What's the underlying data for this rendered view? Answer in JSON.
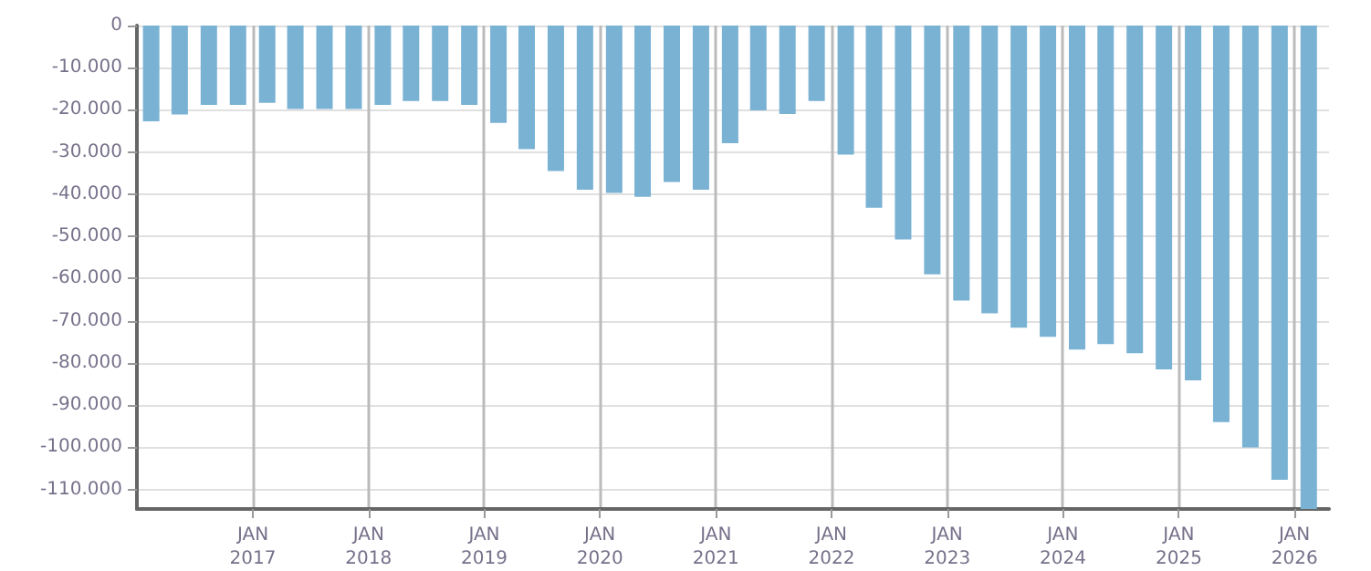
{
  "chart_data": {
    "type": "bar",
    "color": "#7ab2d4",
    "x": [
      "2016-02-15",
      "2016-05-15",
      "2016-08-15",
      "2016-11-15",
      "2017-02-15",
      "2017-05-15",
      "2017-08-15",
      "2017-11-15",
      "2018-02-15",
      "2018-05-15",
      "2018-08-15",
      "2018-11-15",
      "2019-02-15",
      "2019-05-15",
      "2019-08-15",
      "2019-11-15",
      "2020-02-15",
      "2020-05-15",
      "2020-08-15",
      "2020-11-15",
      "2021-02-15",
      "2021-05-15",
      "2021-08-15",
      "2021-11-15",
      "2022-02-15",
      "2022-05-15",
      "2022-08-15",
      "2022-11-15",
      "2023-02-15",
      "2023-05-15",
      "2023-08-15",
      "2023-11-15",
      "2024-02-15",
      "2024-05-15",
      "2024-08-15",
      "2024-11-15",
      "2025-02-15",
      "2025-05-15",
      "2025-08-15",
      "2025-11-15",
      "2026-02-15"
    ],
    "values": [
      -22700,
      -21100,
      -18800,
      -18800,
      -18300,
      -19800,
      -19800,
      -19800,
      -18800,
      -17900,
      -17900,
      -18800,
      -23100,
      -29300,
      -34500,
      -38900,
      -39700,
      -40600,
      -37100,
      -38900,
      -27900,
      -20100,
      -21000,
      -17900,
      -30600,
      -43200,
      -50700,
      -59000,
      -65200,
      -68200,
      -71600,
      -73800,
      -76800,
      -75500,
      -77700,
      -81500,
      -84100,
      -94000,
      -100000,
      -107700,
      -114600
    ],
    "xlim": [
      "2016-01-01",
      "2026-04-20"
    ],
    "xticks": [
      {
        "value": "2017-01-01",
        "label": "JAN\n2017"
      },
      {
        "value": "2018-01-01",
        "label": "JAN\n2018"
      },
      {
        "value": "2019-01-01",
        "label": "JAN\n2019"
      },
      {
        "value": "2020-01-01",
        "label": "JAN\n2020"
      },
      {
        "value": "2021-01-01",
        "label": "JAN\n2021"
      },
      {
        "value": "2022-01-01",
        "label": "JAN\n2022"
      },
      {
        "value": "2023-01-01",
        "label": "JAN\n2023"
      },
      {
        "value": "2024-01-01",
        "label": "JAN\n2024"
      },
      {
        "value": "2025-01-01",
        "label": "JAN\n2025"
      },
      {
        "value": "2026-01-01",
        "label": "JAN\n2026"
      }
    ],
    "ylim": [
      -114600,
      0
    ],
    "yticks": [
      {
        "value": 0,
        "label": "0"
      },
      {
        "value": -10000,
        "label": "-10.000"
      },
      {
        "value": -20000,
        "label": "-20.000"
      },
      {
        "value": -30000,
        "label": "-30.000"
      },
      {
        "value": -40000,
        "label": "-40.000"
      },
      {
        "value": -50000,
        "label": "-50.000"
      },
      {
        "value": -60000,
        "label": "-60.000"
      },
      {
        "value": -70000,
        "label": "-70.000"
      },
      {
        "value": -80000,
        "label": "-80.000"
      },
      {
        "value": -90000,
        "label": "-90.000"
      },
      {
        "value": -100000,
        "label": "-100.000"
      },
      {
        "value": -110000,
        "label": "-110.000"
      }
    ],
    "grid": true
  }
}
